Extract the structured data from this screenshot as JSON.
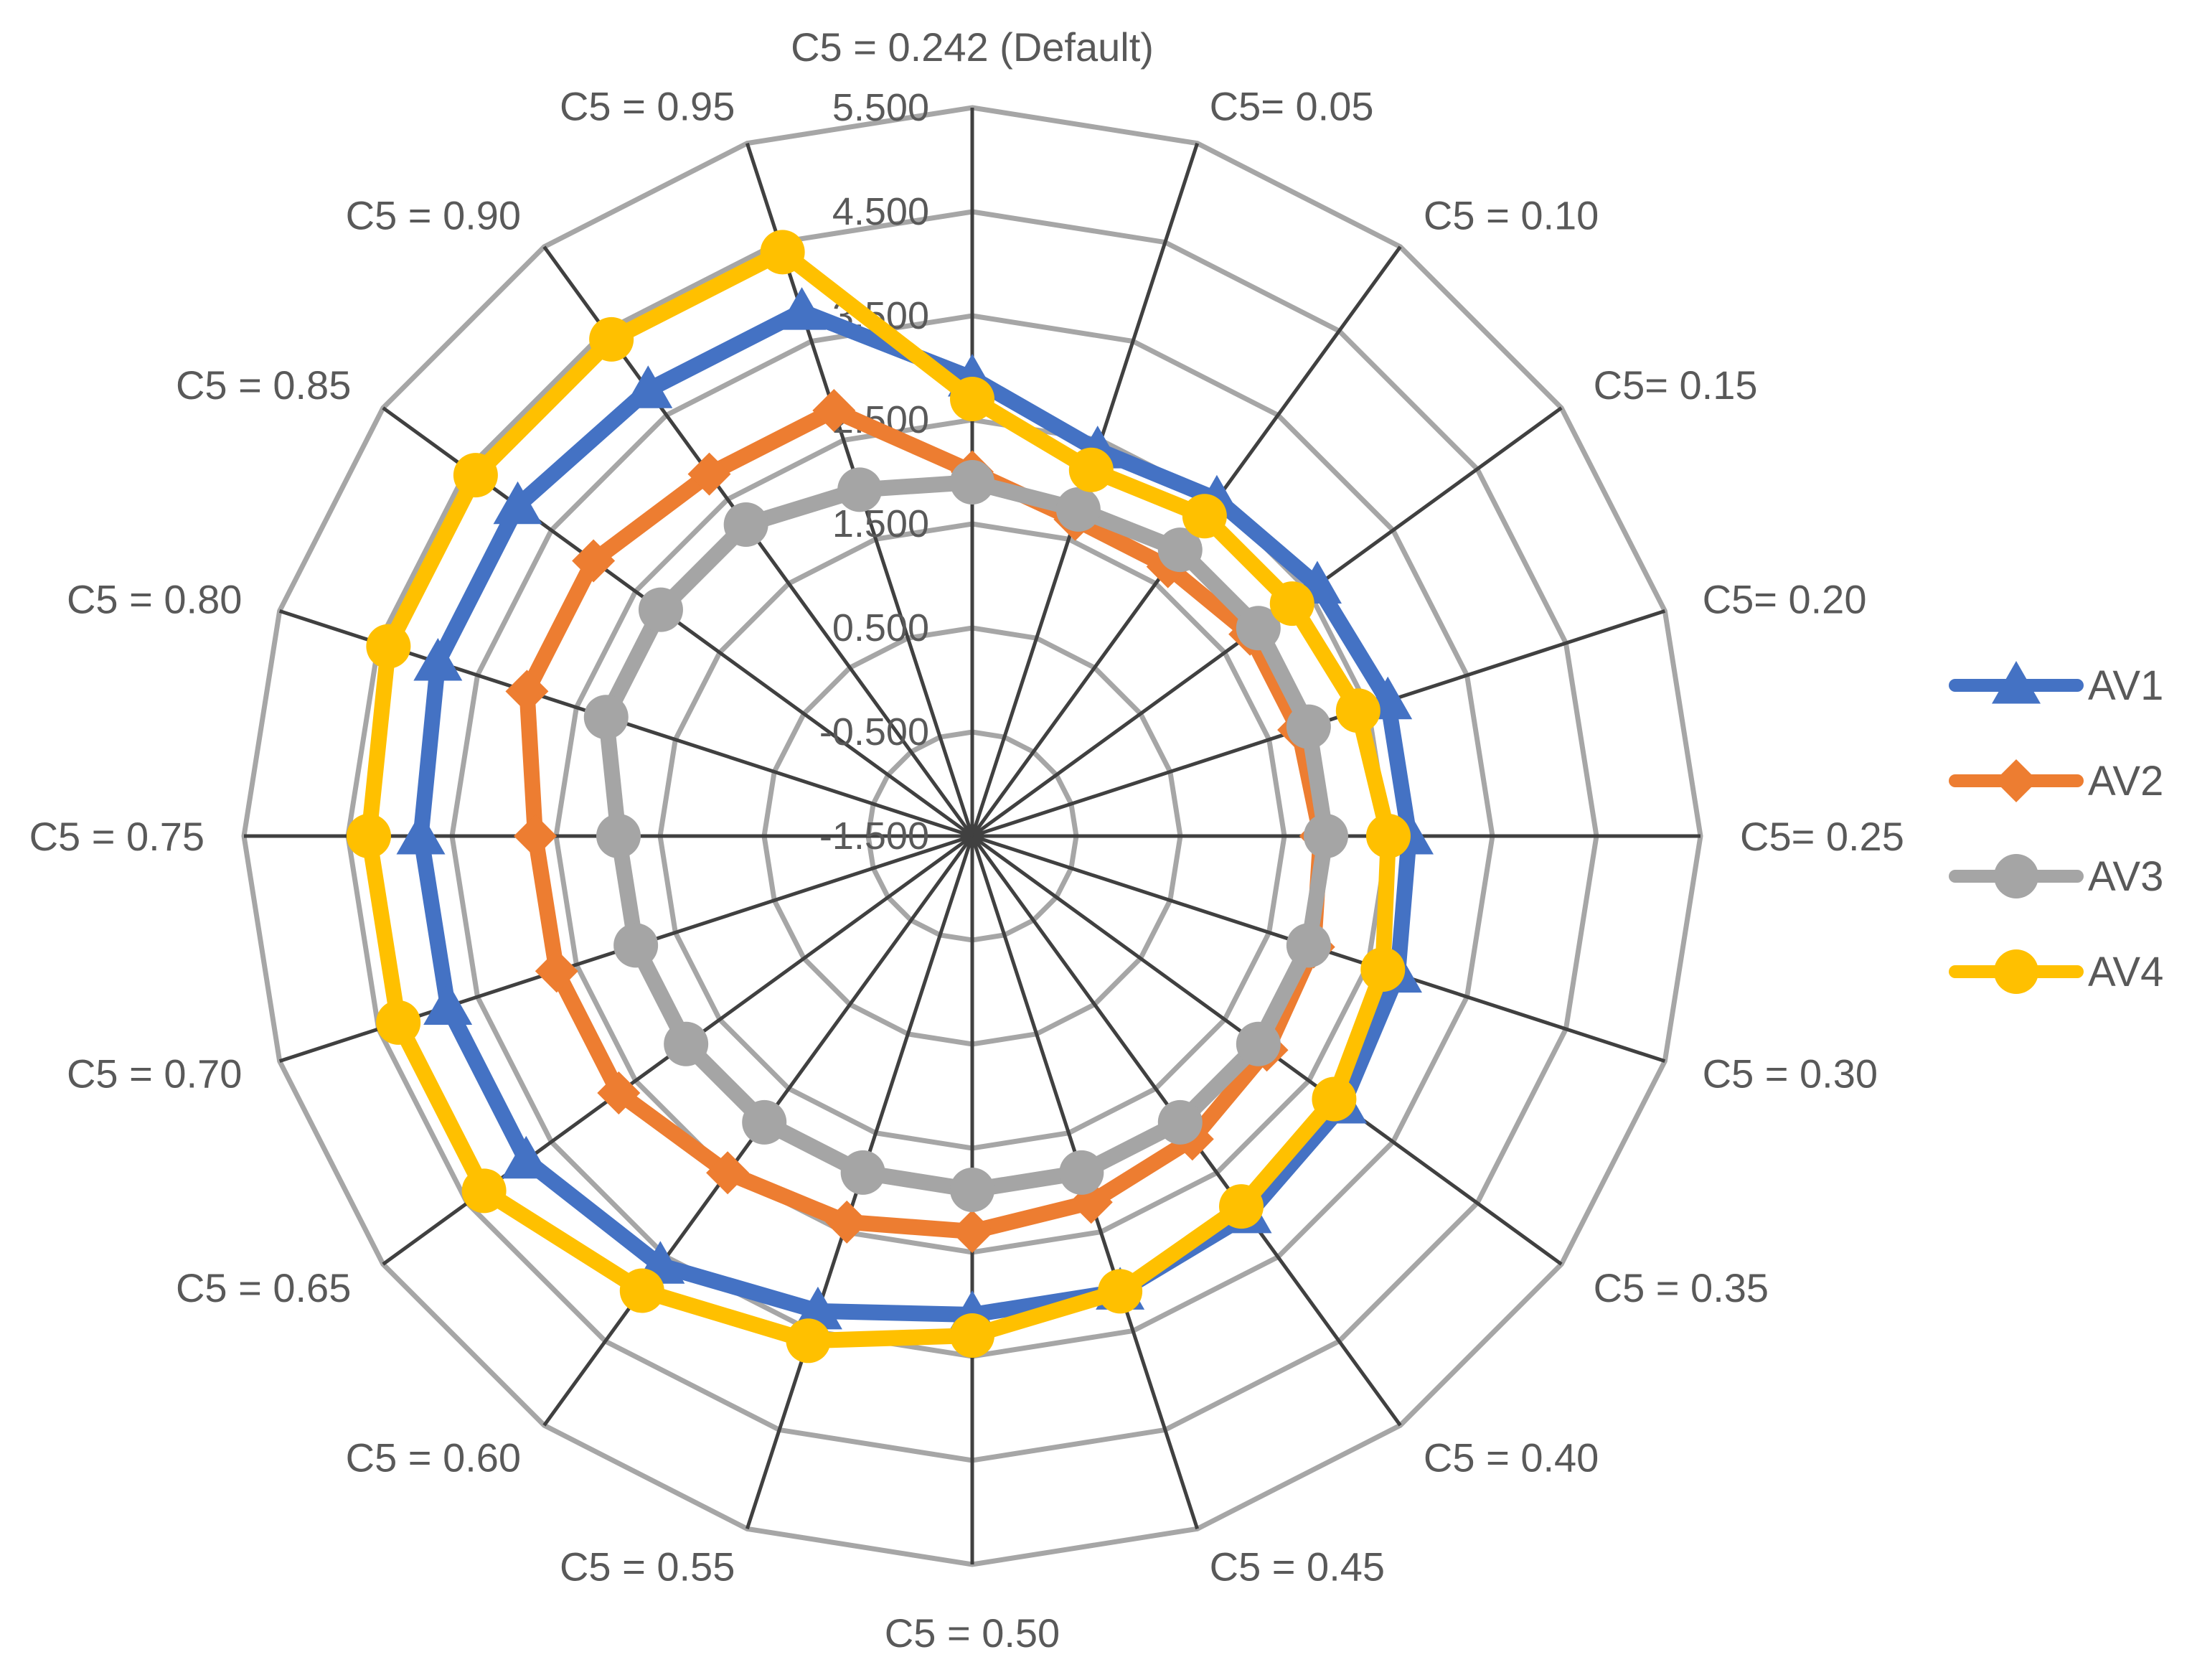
{
  "chart_data": {
    "type": "radar",
    "title": "",
    "categories": [
      "C5 = 0.242 (Default)",
      "C5= 0.05",
      "C5 = 0.10",
      "C5= 0.15",
      "C5= 0.20",
      "C5= 0.25",
      "C5 = 0.30",
      "C5 = 0.35",
      "C5 = 0.40",
      "C5 = 0.45",
      "C5 = 0.50",
      "C5 = 0.55",
      "C5 = 0.60",
      "C5 = 0.65",
      "C5 = 0.70",
      "C5 = 0.75",
      "C5 = 0.80",
      "C5 = 0.85",
      "C5 = 0.90",
      "C5 = 0.95"
    ],
    "series": [
      {
        "name": "AV1",
        "color": "#4472C4",
        "marker": "triangle",
        "values": [
          2.9,
          2.4,
          2.5,
          2.6,
          2.7,
          2.7,
          2.8,
          2.9,
          3.0,
          3.1,
          3.1,
          3.3,
          3.6,
          3.8,
          3.8,
          3.8,
          3.9,
          3.9,
          3.8,
          3.8
        ]
      },
      {
        "name": "AV2",
        "color": "#ED7D31",
        "marker": "diamond",
        "values": [
          2.0,
          1.7,
          1.7,
          1.8,
          1.8,
          1.85,
          1.95,
          2.0,
          2.1,
          2.2,
          2.3,
          2.4,
          2.5,
          2.7,
          2.7,
          2.7,
          3.0,
          3.0,
          2.8,
          2.8
        ]
      },
      {
        "name": "AV3",
        "color": "#A5A5A5",
        "marker": "circle",
        "values": [
          1.9,
          1.8,
          1.9,
          1.9,
          1.9,
          1.9,
          1.9,
          1.9,
          1.9,
          1.9,
          1.9,
          1.9,
          1.9,
          1.9,
          1.9,
          1.9,
          2.2,
          2.2,
          2.2,
          2.0
        ]
      },
      {
        "name": "AV4",
        "color": "#FFC000",
        "marker": "circle",
        "values": [
          2.7,
          2.2,
          2.3,
          2.3,
          2.4,
          2.5,
          2.65,
          2.8,
          2.9,
          3.1,
          3.3,
          3.6,
          3.9,
          4.3,
          4.3,
          4.3,
          4.4,
          4.4,
          4.4,
          4.4
        ]
      }
    ],
    "radial_axis": {
      "min": -1.5,
      "max": 5.5,
      "step": 1.0,
      "tick_labels": [
        "-1.500",
        "-0.500",
        "0.500",
        "1.500",
        "2.500",
        "3.500",
        "4.500",
        "5.500"
      ]
    },
    "grid": true,
    "legend_position": "right",
    "colors": {
      "gridline": "#A6A6A6",
      "spoke": "#404040",
      "text": "#595959"
    }
  },
  "legend": {
    "items": [
      {
        "label": "AV1"
      },
      {
        "label": "AV2"
      },
      {
        "label": "AV3"
      },
      {
        "label": "AV4"
      }
    ]
  }
}
